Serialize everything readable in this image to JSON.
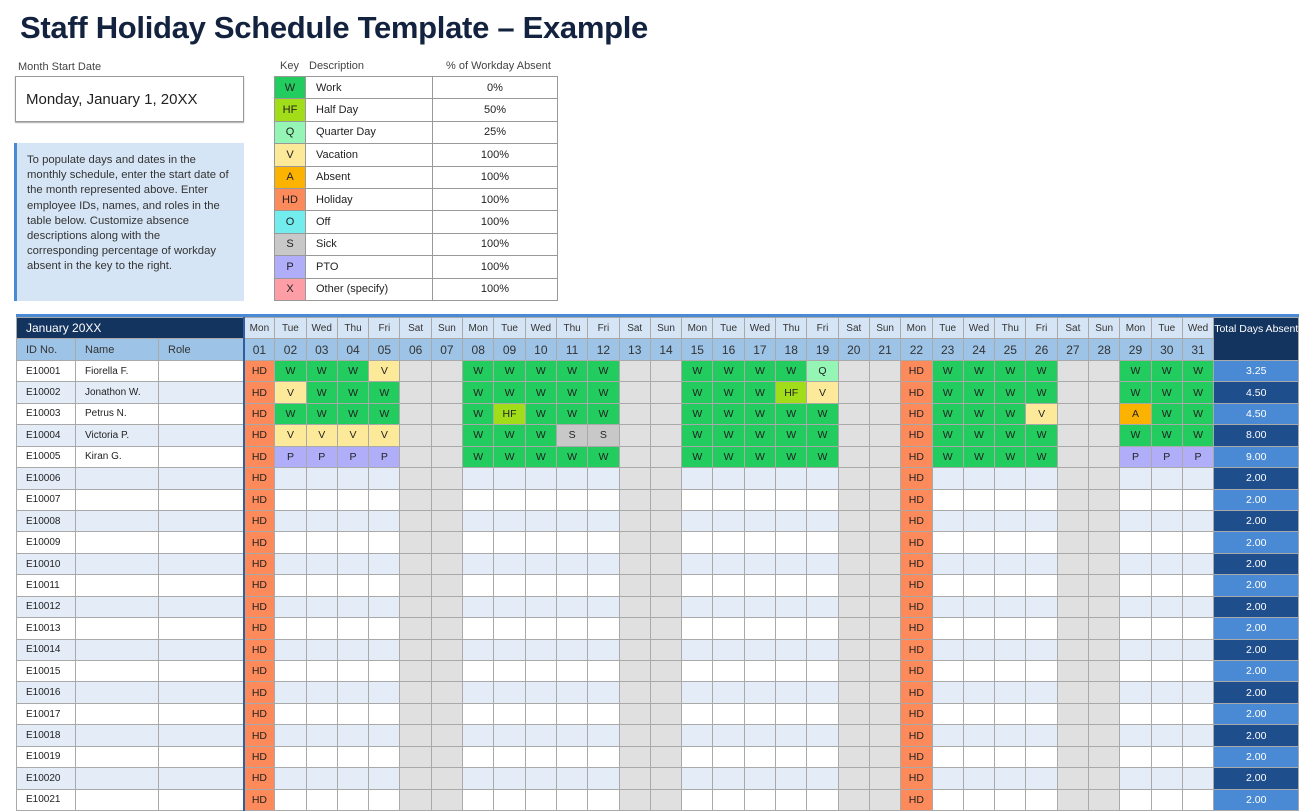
{
  "title": "Staff Holiday Schedule Template – Example",
  "month_start": {
    "label": "Month Start Date",
    "value": "Monday, January 1, 20XX"
  },
  "note": "To populate days and dates in the monthly schedule, enter the start date of the month represented above. Enter employee IDs, names, and roles in the table below. Customize absence descriptions along with the corresponding percentage of workday absent in the key to the right.",
  "key": {
    "headers": {
      "key": "Key",
      "description": "Description",
      "percent": "% of Workday Absent"
    },
    "items": [
      {
        "code": "W",
        "description": "Work",
        "percent": "0%",
        "color": "#22cc5e"
      },
      {
        "code": "HF",
        "description": "Half Day",
        "percent": "50%",
        "color": "#a2dd1a"
      },
      {
        "code": "Q",
        "description": "Quarter Day",
        "percent": "25%",
        "color": "#94f5b4"
      },
      {
        "code": "V",
        "description": "Vacation",
        "percent": "100%",
        "color": "#fde99a"
      },
      {
        "code": "A",
        "description": "Absent",
        "percent": "100%",
        "color": "#fbb300"
      },
      {
        "code": "HD",
        "description": "Holiday",
        "percent": "100%",
        "color": "#fc8a5a"
      },
      {
        "code": "O",
        "description": "Off",
        "percent": "100%",
        "color": "#72ecec"
      },
      {
        "code": "S",
        "description": "Sick",
        "percent": "100%",
        "color": "#c8c8c8"
      },
      {
        "code": "P",
        "description": "PTO",
        "percent": "100%",
        "color": "#b0adf9"
      },
      {
        "code": "X",
        "description": "Other (specify)",
        "percent": "100%",
        "color": "#fd9ea6"
      }
    ]
  },
  "schedule": {
    "month": "January 20XX",
    "columns": {
      "id": "ID No.",
      "name": "Name",
      "role": "Role",
      "total": "Total Days Absent"
    },
    "weekdays": [
      "Mon",
      "Tue",
      "Wed",
      "Thu",
      "Fri",
      "Sat",
      "Sun",
      "Mon",
      "Tue",
      "Wed",
      "Thu",
      "Fri",
      "Sat",
      "Sun",
      "Mon",
      "Tue",
      "Wed",
      "Thu",
      "Fri",
      "Sat",
      "Sun",
      "Mon",
      "Tue",
      "Wed",
      "Thu",
      "Fri",
      "Sat",
      "Sun",
      "Mon",
      "Tue",
      "Wed"
    ],
    "dates": [
      "01",
      "02",
      "03",
      "04",
      "05",
      "06",
      "07",
      "08",
      "09",
      "10",
      "11",
      "12",
      "13",
      "14",
      "15",
      "16",
      "17",
      "18",
      "19",
      "20",
      "21",
      "22",
      "23",
      "24",
      "25",
      "26",
      "27",
      "28",
      "29",
      "30",
      "31"
    ],
    "employees": [
      {
        "id": "E10001",
        "name": "Fiorella F.",
        "role": "",
        "days": [
          "HD",
          "W",
          "W",
          "W",
          "V",
          "",
          "",
          "W",
          "W",
          "W",
          "W",
          "W",
          "",
          "",
          "W",
          "W",
          "W",
          "W",
          "Q",
          "",
          "",
          "HD",
          "W",
          "W",
          "W",
          "W",
          "",
          "",
          "W",
          "W",
          "W"
        ],
        "total": "3.25"
      },
      {
        "id": "E10002",
        "name": "Jonathon W.",
        "role": "",
        "days": [
          "HD",
          "V",
          "W",
          "W",
          "W",
          "",
          "",
          "W",
          "W",
          "W",
          "W",
          "W",
          "",
          "",
          "W",
          "W",
          "W",
          "HF",
          "V",
          "",
          "",
          "HD",
          "W",
          "W",
          "W",
          "W",
          "",
          "",
          "W",
          "W",
          "W"
        ],
        "total": "4.50"
      },
      {
        "id": "E10003",
        "name": "Petrus N.",
        "role": "",
        "days": [
          "HD",
          "W",
          "W",
          "W",
          "W",
          "",
          "",
          "W",
          "HF",
          "W",
          "W",
          "W",
          "",
          "",
          "W",
          "W",
          "W",
          "W",
          "W",
          "",
          "",
          "HD",
          "W",
          "W",
          "W",
          "V",
          "",
          "",
          "A",
          "W",
          "W"
        ],
        "total": "4.50"
      },
      {
        "id": "E10004",
        "name": "Victoria P.",
        "role": "",
        "days": [
          "HD",
          "V",
          "V",
          "V",
          "V",
          "",
          "",
          "W",
          "W",
          "W",
          "S",
          "S",
          "",
          "",
          "W",
          "W",
          "W",
          "W",
          "W",
          "",
          "",
          "HD",
          "W",
          "W",
          "W",
          "W",
          "",
          "",
          "W",
          "W",
          "W"
        ],
        "total": "8.00"
      },
      {
        "id": "E10005",
        "name": "Kiran G.",
        "role": "",
        "days": [
          "HD",
          "P",
          "P",
          "P",
          "P",
          "",
          "",
          "W",
          "W",
          "W",
          "W",
          "W",
          "",
          "",
          "W",
          "W",
          "W",
          "W",
          "W",
          "",
          "",
          "HD",
          "W",
          "W",
          "W",
          "W",
          "",
          "",
          "P",
          "P",
          "P"
        ],
        "total": "9.00"
      },
      {
        "id": "E10006",
        "name": "",
        "role": "",
        "days": [
          "HD",
          "",
          "",
          "",
          "",
          "",
          "",
          "",
          "",
          "",
          "",
          "",
          "",
          "",
          "",
          "",
          "",
          "",
          "",
          "",
          "",
          "HD",
          "",
          "",
          "",
          "",
          "",
          "",
          "",
          "",
          ""
        ],
        "total": "2.00"
      },
      {
        "id": "E10007",
        "name": "",
        "role": "",
        "days": [
          "HD",
          "",
          "",
          "",
          "",
          "",
          "",
          "",
          "",
          "",
          "",
          "",
          "",
          "",
          "",
          "",
          "",
          "",
          "",
          "",
          "",
          "HD",
          "",
          "",
          "",
          "",
          "",
          "",
          "",
          "",
          ""
        ],
        "total": "2.00"
      },
      {
        "id": "E10008",
        "name": "",
        "role": "",
        "days": [
          "HD",
          "",
          "",
          "",
          "",
          "",
          "",
          "",
          "",
          "",
          "",
          "",
          "",
          "",
          "",
          "",
          "",
          "",
          "",
          "",
          "",
          "HD",
          "",
          "",
          "",
          "",
          "",
          "",
          "",
          "",
          ""
        ],
        "total": "2.00"
      },
      {
        "id": "E10009",
        "name": "",
        "role": "",
        "days": [
          "HD",
          "",
          "",
          "",
          "",
          "",
          "",
          "",
          "",
          "",
          "",
          "",
          "",
          "",
          "",
          "",
          "",
          "",
          "",
          "",
          "",
          "HD",
          "",
          "",
          "",
          "",
          "",
          "",
          "",
          "",
          ""
        ],
        "total": "2.00"
      },
      {
        "id": "E10010",
        "name": "",
        "role": "",
        "days": [
          "HD",
          "",
          "",
          "",
          "",
          "",
          "",
          "",
          "",
          "",
          "",
          "",
          "",
          "",
          "",
          "",
          "",
          "",
          "",
          "",
          "",
          "HD",
          "",
          "",
          "",
          "",
          "",
          "",
          "",
          "",
          ""
        ],
        "total": "2.00"
      },
      {
        "id": "E10011",
        "name": "",
        "role": "",
        "days": [
          "HD",
          "",
          "",
          "",
          "",
          "",
          "",
          "",
          "",
          "",
          "",
          "",
          "",
          "",
          "",
          "",
          "",
          "",
          "",
          "",
          "",
          "HD",
          "",
          "",
          "",
          "",
          "",
          "",
          "",
          "",
          ""
        ],
        "total": "2.00"
      },
      {
        "id": "E10012",
        "name": "",
        "role": "",
        "days": [
          "HD",
          "",
          "",
          "",
          "",
          "",
          "",
          "",
          "",
          "",
          "",
          "",
          "",
          "",
          "",
          "",
          "",
          "",
          "",
          "",
          "",
          "HD",
          "",
          "",
          "",
          "",
          "",
          "",
          "",
          "",
          ""
        ],
        "total": "2.00"
      },
      {
        "id": "E10013",
        "name": "",
        "role": "",
        "days": [
          "HD",
          "",
          "",
          "",
          "",
          "",
          "",
          "",
          "",
          "",
          "",
          "",
          "",
          "",
          "",
          "",
          "",
          "",
          "",
          "",
          "",
          "HD",
          "",
          "",
          "",
          "",
          "",
          "",
          "",
          "",
          ""
        ],
        "total": "2.00"
      },
      {
        "id": "E10014",
        "name": "",
        "role": "",
        "days": [
          "HD",
          "",
          "",
          "",
          "",
          "",
          "",
          "",
          "",
          "",
          "",
          "",
          "",
          "",
          "",
          "",
          "",
          "",
          "",
          "",
          "",
          "HD",
          "",
          "",
          "",
          "",
          "",
          "",
          "",
          "",
          ""
        ],
        "total": "2.00"
      },
      {
        "id": "E10015",
        "name": "",
        "role": "",
        "days": [
          "HD",
          "",
          "",
          "",
          "",
          "",
          "",
          "",
          "",
          "",
          "",
          "",
          "",
          "",
          "",
          "",
          "",
          "",
          "",
          "",
          "",
          "HD",
          "",
          "",
          "",
          "",
          "",
          "",
          "",
          "",
          ""
        ],
        "total": "2.00"
      },
      {
        "id": "E10016",
        "name": "",
        "role": "",
        "days": [
          "HD",
          "",
          "",
          "",
          "",
          "",
          "",
          "",
          "",
          "",
          "",
          "",
          "",
          "",
          "",
          "",
          "",
          "",
          "",
          "",
          "",
          "HD",
          "",
          "",
          "",
          "",
          "",
          "",
          "",
          "",
          ""
        ],
        "total": "2.00"
      },
      {
        "id": "E10017",
        "name": "",
        "role": "",
        "days": [
          "HD",
          "",
          "",
          "",
          "",
          "",
          "",
          "",
          "",
          "",
          "",
          "",
          "",
          "",
          "",
          "",
          "",
          "",
          "",
          "",
          "",
          "HD",
          "",
          "",
          "",
          "",
          "",
          "",
          "",
          "",
          ""
        ],
        "total": "2.00"
      },
      {
        "id": "E10018",
        "name": "",
        "role": "",
        "days": [
          "HD",
          "",
          "",
          "",
          "",
          "",
          "",
          "",
          "",
          "",
          "",
          "",
          "",
          "",
          "",
          "",
          "",
          "",
          "",
          "",
          "",
          "HD",
          "",
          "",
          "",
          "",
          "",
          "",
          "",
          "",
          ""
        ],
        "total": "2.00"
      },
      {
        "id": "E10019",
        "name": "",
        "role": "",
        "days": [
          "HD",
          "",
          "",
          "",
          "",
          "",
          "",
          "",
          "",
          "",
          "",
          "",
          "",
          "",
          "",
          "",
          "",
          "",
          "",
          "",
          "",
          "HD",
          "",
          "",
          "",
          "",
          "",
          "",
          "",
          "",
          ""
        ],
        "total": "2.00"
      },
      {
        "id": "E10020",
        "name": "",
        "role": "",
        "days": [
          "HD",
          "",
          "",
          "",
          "",
          "",
          "",
          "",
          "",
          "",
          "",
          "",
          "",
          "",
          "",
          "",
          "",
          "",
          "",
          "",
          "",
          "HD",
          "",
          "",
          "",
          "",
          "",
          "",
          "",
          "",
          ""
        ],
        "total": "2.00"
      },
      {
        "id": "E10021",
        "name": "",
        "role": "",
        "days": [
          "HD",
          "",
          "",
          "",
          "",
          "",
          "",
          "",
          "",
          "",
          "",
          "",
          "",
          "",
          "",
          "",
          "",
          "",
          "",
          "",
          "",
          "HD",
          "",
          "",
          "",
          "",
          "",
          "",
          "",
          "",
          ""
        ],
        "total": "2.00"
      }
    ]
  }
}
